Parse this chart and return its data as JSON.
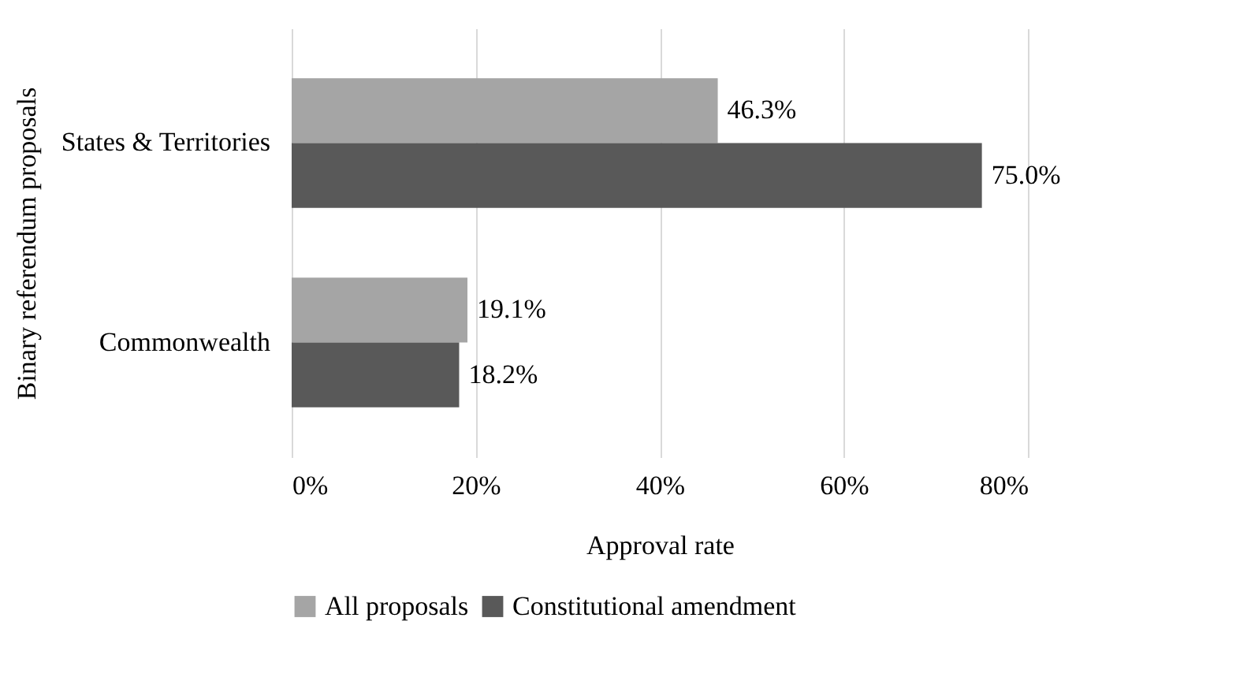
{
  "chart_data": {
    "type": "bar",
    "orientation": "horizontal",
    "xlabel": "Approval rate",
    "ylabel": "Binary referendum proposals",
    "categories": [
      "States & Territories",
      "Commonwealth"
    ],
    "series": [
      {
        "name": "All proposals",
        "color": "#a5a5a5",
        "values": [
          46.3,
          19.1
        ],
        "value_labels": [
          "46.3%",
          "19.1%"
        ]
      },
      {
        "name": "Constitutional amendment",
        "color": "#595959",
        "values": [
          75.0,
          18.2
        ],
        "value_labels": [
          "75.0%",
          "18.2%"
        ]
      }
    ],
    "xlim": [
      0,
      80
    ],
    "xticks": [
      {
        "value": 0,
        "label": "0%"
      },
      {
        "value": 20,
        "label": "20%"
      },
      {
        "value": 40,
        "label": "40%"
      },
      {
        "value": 60,
        "label": "60%"
      },
      {
        "value": 80,
        "label": "80%"
      }
    ],
    "grid": "x",
    "legend": "bottom"
  }
}
